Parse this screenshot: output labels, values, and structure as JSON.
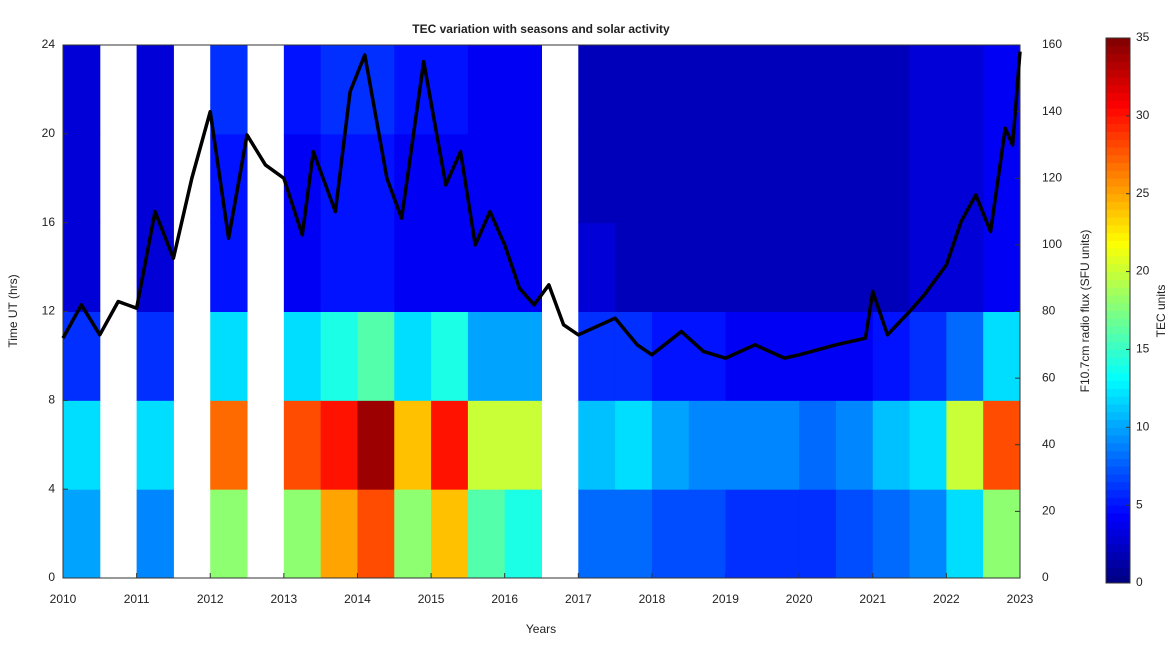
{
  "chart_data": {
    "type": "heatmap",
    "title": "TEC variation with seasons and solar activity",
    "xlabel": "Years",
    "ylabel": "Time UT (hrs)",
    "y2label": "F10.7cm radio flux (SFU units)",
    "colorbar_label": "TEC units",
    "colormap": "jet",
    "x_bins": [
      2010,
      2010.5,
      2011,
      2011.5,
      2012,
      2012.5,
      2013,
      2013.5,
      2014,
      2014.5,
      2015,
      2015.5,
      2016,
      2016.5,
      2017,
      2017.5,
      2018,
      2018.5,
      2019,
      2019.5,
      2020,
      2020.5,
      2021,
      2021.5,
      2022,
      2022.5,
      2023
    ],
    "y_bins": [
      0,
      4,
      8,
      12,
      16,
      20,
      24
    ],
    "z": [
      [
        10,
        12,
        6,
        3,
        3,
        3
      ],
      null,
      [
        9,
        12,
        6,
        3,
        3,
        3
      ],
      null,
      [
        18,
        27,
        12,
        5,
        5,
        6
      ],
      null,
      [
        18,
        28,
        12,
        4,
        4,
        5
      ],
      [
        25,
        30,
        14,
        5,
        5,
        6
      ],
      [
        28,
        34,
        16,
        5,
        5,
        6
      ],
      [
        18,
        24,
        12,
        4,
        4,
        5
      ],
      [
        24,
        30,
        14,
        4,
        4,
        5
      ],
      [
        16,
        20,
        10,
        4,
        4,
        4
      ],
      [
        14,
        20,
        10,
        4,
        4,
        4
      ],
      null,
      [
        8,
        11,
        6,
        3,
        2,
        2
      ],
      [
        8,
        12,
        6,
        2,
        2,
        2
      ],
      [
        7,
        10,
        5,
        2,
        2,
        2
      ],
      [
        7,
        9,
        5,
        2,
        2,
        2
      ],
      [
        6,
        9,
        4,
        2,
        2,
        2
      ],
      [
        6,
        9,
        4,
        2,
        2,
        2
      ],
      [
        6,
        8,
        4,
        2,
        2,
        2
      ],
      [
        7,
        9,
        4,
        2,
        2,
        2
      ],
      [
        8,
        11,
        5,
        2,
        2,
        2
      ],
      [
        9,
        12,
        6,
        3,
        3,
        3
      ],
      [
        12,
        20,
        8,
        3,
        3,
        3
      ],
      [
        18,
        28,
        12,
        4,
        4,
        4
      ]
    ],
    "zlim": [
      0,
      35
    ],
    "zticks": [
      0,
      5,
      10,
      15,
      20,
      25,
      30,
      35
    ],
    "line": {
      "color": "#000000",
      "axis": "y2",
      "x": [
        2010.0,
        2010.25,
        2010.5,
        2010.75,
        2011.0,
        2011.25,
        2011.5,
        2011.75,
        2012.0,
        2012.25,
        2012.5,
        2012.75,
        2013.0,
        2013.25,
        2013.4,
        2013.7,
        2013.9,
        2014.1,
        2014.4,
        2014.6,
        2014.9,
        2015.2,
        2015.4,
        2015.6,
        2015.8,
        2016.0,
        2016.2,
        2016.4,
        2016.6,
        2016.8,
        2017.0,
        2017.5,
        2017.8,
        2018.0,
        2018.4,
        2018.7,
        2019.0,
        2019.4,
        2019.8,
        2020.0,
        2020.5,
        2020.9,
        2021.0,
        2021.2,
        2021.5,
        2021.7,
        2022.0,
        2022.2,
        2022.4,
        2022.6,
        2022.8,
        2022.9,
        2023.0
      ],
      "values": [
        72,
        82,
        73,
        83,
        81,
        110,
        96,
        120,
        140,
        102,
        133,
        124,
        120,
        103,
        128,
        110,
        146,
        157,
        120,
        108,
        155,
        118,
        128,
        100,
        110,
        100,
        87,
        82,
        88,
        76,
        73,
        78,
        70,
        67,
        74,
        68,
        66,
        70,
        66,
        67,
        70,
        72,
        86,
        73,
        80,
        85,
        94,
        107,
        115,
        104,
        135,
        130,
        158
      ]
    },
    "xlim": [
      2010,
      2023
    ],
    "xticks": [
      2010,
      2011,
      2012,
      2013,
      2014,
      2015,
      2016,
      2017,
      2018,
      2019,
      2020,
      2021,
      2022,
      2023
    ],
    "ylim": [
      0,
      24
    ],
    "yticks": [
      0,
      4,
      8,
      12,
      16,
      20,
      24
    ],
    "y2lim": [
      0,
      160
    ],
    "y2ticks": [
      0,
      20,
      40,
      60,
      80,
      100,
      120,
      140,
      160
    ]
  }
}
